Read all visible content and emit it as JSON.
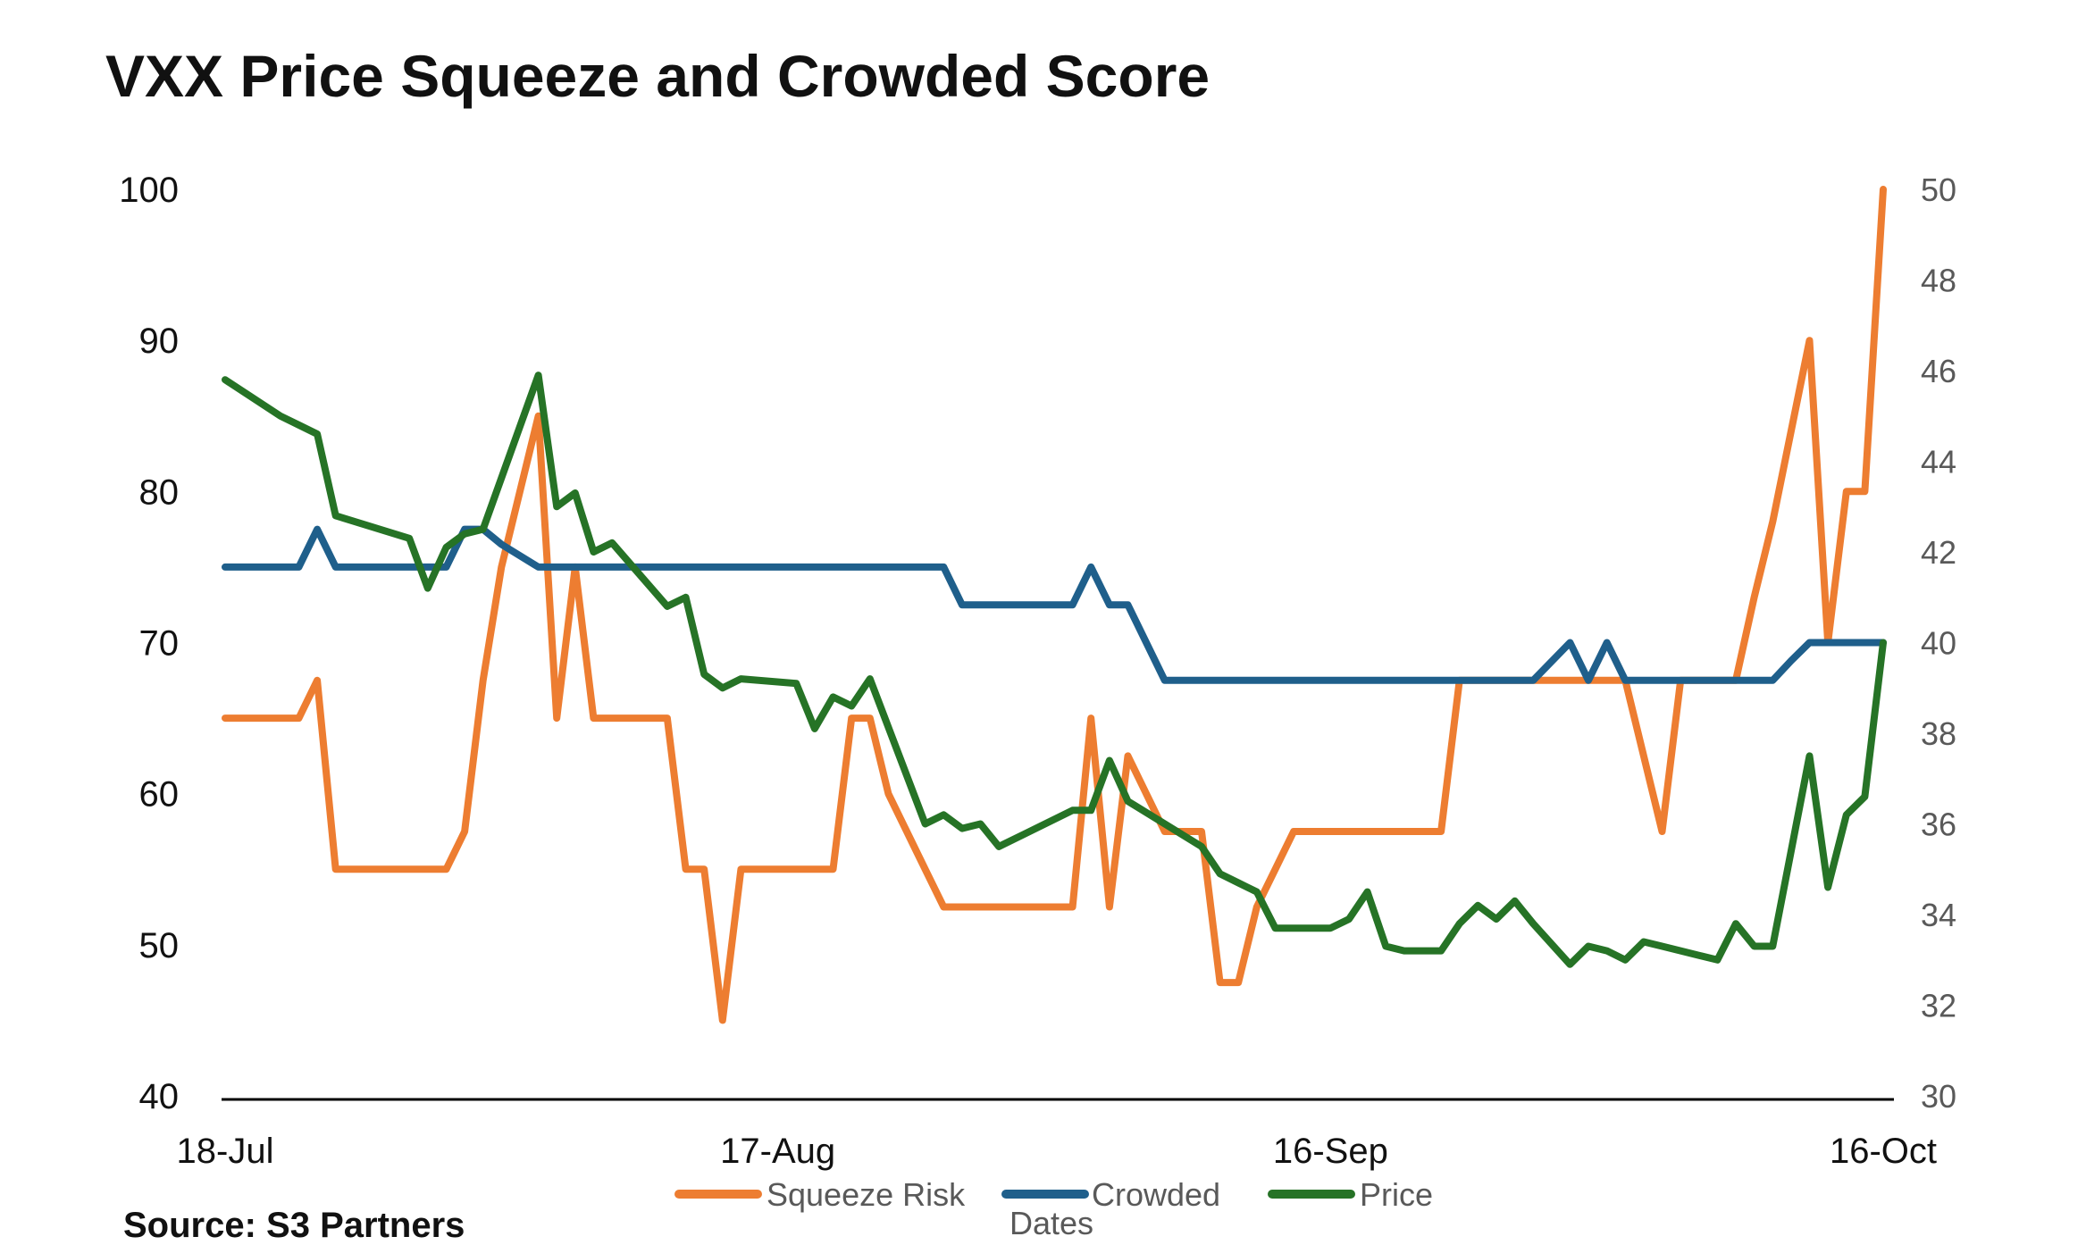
{
  "chart_data": {
    "type": "line",
    "title": "VXX Price Squeeze and Crowded Score",
    "xlabel": "Dates",
    "ylabel": "",
    "y2label": "",
    "source": "Source: S3 Partners",
    "ylim": [
      40,
      100
    ],
    "y2lim": [
      30,
      50
    ],
    "yticks": [
      "40",
      "50",
      "60",
      "70",
      "80",
      "90",
      "100"
    ],
    "y2ticks": [
      "30",
      "32",
      "34",
      "36",
      "38",
      "40",
      "42",
      "44",
      "46",
      "48",
      "50"
    ],
    "x_range_days": [
      0,
      90
    ],
    "x_ticks": [
      {
        "day": 0,
        "label": "18-Jul"
      },
      {
        "day": 30,
        "label": "17-Aug"
      },
      {
        "day": 60,
        "label": "16-Sep"
      },
      {
        "day": 90,
        "label": "16-Oct"
      }
    ],
    "legend": [
      "Squeeze Risk",
      "Crowded",
      "Price"
    ],
    "legend_position": "bottom",
    "colors": {
      "squeeze": "#ED7D31",
      "crowded": "#1F5F8B",
      "price": "#267326",
      "axis": "#000000"
    },
    "series": [
      {
        "name": "Squeeze Risk",
        "axis": "left",
        "color": "#ED7D31",
        "x": [
          0,
          4,
          5,
          6,
          12,
          13,
          14,
          15,
          17,
          18,
          19,
          20,
          21,
          22,
          24,
          25,
          26,
          27,
          28,
          29,
          30,
          33,
          34,
          35,
          36,
          38,
          39,
          40,
          41,
          42,
          46,
          47,
          48,
          49,
          50,
          51,
          53,
          54,
          55,
          56,
          57,
          58,
          59,
          60,
          66,
          67,
          68,
          69,
          70,
          71,
          73,
          74,
          75,
          76,
          77,
          78,
          79,
          80,
          81,
          82,
          83,
          84,
          85,
          86,
          87,
          88,
          89,
          90
        ],
        "values": [
          65,
          65,
          67.5,
          55,
          55,
          57.5,
          67.5,
          75,
          85,
          65,
          75,
          65,
          65,
          65,
          65,
          55,
          55,
          45,
          55,
          55,
          55,
          55,
          65,
          65,
          60,
          55,
          52.5,
          52.5,
          52.5,
          52.5,
          52.5,
          65,
          52.5,
          62.5,
          60,
          57.5,
          57.5,
          47.5,
          47.5,
          52.5,
          55,
          57.5,
          57.5,
          57.5,
          57.5,
          67.5,
          67.5,
          67.5,
          67.5,
          67.5,
          67.5,
          67.5,
          67.5,
          67.5,
          62.5,
          57.5,
          67.5,
          67.5,
          67.5,
          67.5,
          73,
          78,
          84,
          90,
          70,
          80,
          80,
          100
        ]
      },
      {
        "name": "Crowded",
        "axis": "left",
        "color": "#1F5F8B",
        "x": [
          0,
          4,
          5,
          6,
          12,
          13,
          14,
          15,
          17,
          18,
          19,
          20,
          21,
          22,
          24,
          25,
          26,
          27,
          28,
          29,
          30,
          33,
          34,
          35,
          36,
          38,
          39,
          40,
          41,
          42,
          46,
          47,
          48,
          49,
          50,
          51,
          53,
          54,
          55,
          56,
          57,
          58,
          59,
          60,
          66,
          67,
          68,
          69,
          70,
          71,
          73,
          74,
          75,
          76,
          77,
          78,
          79,
          80,
          81,
          82,
          83,
          84,
          85,
          86,
          87,
          88,
          89,
          90
        ],
        "values": [
          75,
          75,
          77.5,
          75,
          75,
          77.5,
          77.5,
          76.5,
          75,
          75,
          75,
          75,
          75,
          75,
          75,
          75,
          75,
          75,
          75,
          75,
          75,
          75,
          75,
          75,
          75,
          75,
          75,
          72.5,
          72.5,
          72.5,
          72.5,
          75,
          72.5,
          72.5,
          70,
          67.5,
          67.5,
          67.5,
          67.5,
          67.5,
          67.5,
          67.5,
          67.5,
          67.5,
          67.5,
          67.5,
          67.5,
          67.5,
          67.5,
          67.5,
          70,
          67.5,
          70,
          67.5,
          67.5,
          67.5,
          67.5,
          67.5,
          67.5,
          67.5,
          67.5,
          67.5,
          68.8,
          70,
          70,
          70,
          70,
          70
        ]
      },
      {
        "name": "Price",
        "axis": "right",
        "color": "#267326",
        "x": [
          0,
          3,
          4,
          5,
          6,
          10,
          11,
          12,
          13,
          14,
          17,
          18,
          19,
          20,
          21,
          24,
          25,
          26,
          27,
          28,
          31,
          32,
          33,
          34,
          35,
          38,
          39,
          40,
          41,
          42,
          46,
          47,
          48,
          49,
          53,
          54,
          55,
          56,
          57,
          59,
          60,
          61,
          62,
          63,
          64,
          66,
          67,
          68,
          69,
          70,
          71,
          73,
          74,
          75,
          76,
          77,
          78,
          79,
          80,
          81,
          82,
          83,
          84,
          85,
          86,
          87,
          88,
          89,
          90
        ],
        "values": [
          45.8,
          45,
          44.8,
          44.6,
          42.8,
          42.3,
          41.2,
          42.1,
          42.4,
          42.5,
          45.9,
          43,
          43.3,
          42,
          42.2,
          40.8,
          41,
          39.3,
          39,
          39.2,
          39.1,
          38.1,
          38.8,
          38.6,
          39.2,
          36,
          36.2,
          35.9,
          36,
          35.5,
          36.3,
          36.3,
          37.4,
          36.5,
          35.5,
          34.9,
          34.7,
          34.5,
          33.7,
          33.7,
          33.7,
          33.9,
          34.5,
          33.3,
          33.2,
          33.2,
          33.8,
          34.2,
          33.9,
          34.3,
          33.8,
          32.9,
          33.3,
          33.2,
          33,
          33.4,
          33.3,
          33.2,
          33.1,
          33,
          33.8,
          33.3,
          33.3,
          35.4,
          37.5,
          34.6,
          36.2,
          36.6,
          40
        ]
      }
    ]
  }
}
